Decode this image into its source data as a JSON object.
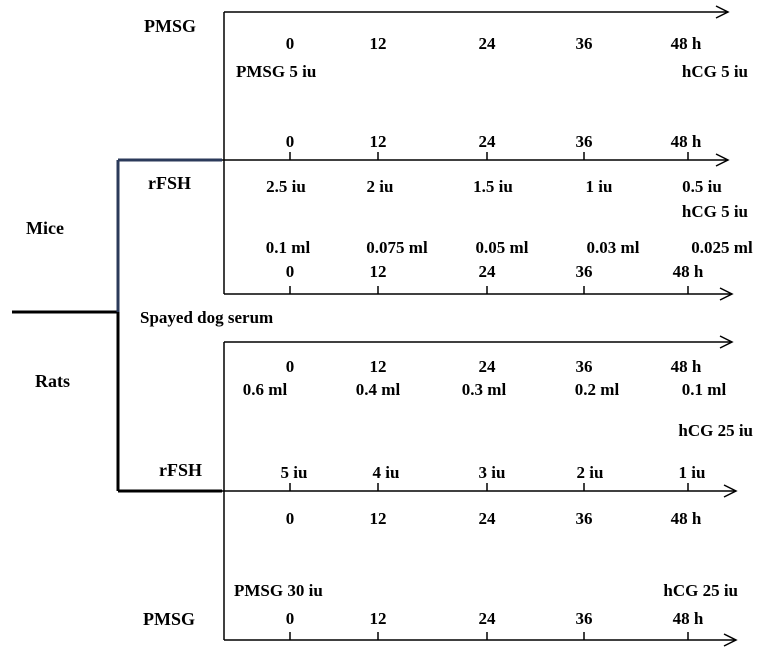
{
  "species": {
    "mice": "Mice",
    "rats": "Rats"
  },
  "protocols": {
    "mice_pmsg": {
      "label": "PMSG",
      "hours": [
        "0",
        "12",
        "24",
        "36",
        "48 h"
      ],
      "start_dose": "PMSG 5 iu",
      "end_dose": "hCG 5 iu"
    },
    "mice_rfsh": {
      "label": "rFSH",
      "hours": [
        "0",
        "12",
        "24",
        "36",
        "48 h"
      ],
      "doses": [
        "2.5 iu",
        "2 iu",
        "1.5 iu",
        "1 iu",
        "0.5 iu"
      ],
      "end_dose": "hCG 5 iu"
    },
    "mice_serum": {
      "label": "Spayed dog serum",
      "volumes": [
        "0.1 ml",
        "0.075 ml",
        "0.05 ml",
        "0.03 ml",
        "0.025 ml"
      ],
      "hours": [
        "0",
        "12",
        "24",
        "36",
        "48 h"
      ]
    },
    "rats_serum": {
      "hours": [
        "0",
        "12",
        "24",
        "36",
        "48 h"
      ],
      "volumes": [
        "0.6 ml",
        "0.4 ml",
        "0.3 ml",
        "0.2 ml",
        "0.1 ml"
      ],
      "end_dose": "hCG 25 iu"
    },
    "rats_rfsh": {
      "label": "rFSH",
      "doses": [
        "5 iu",
        "4 iu",
        "3 iu",
        "2 iu",
        "1 iu"
      ],
      "hours": [
        "0",
        "12",
        "24",
        "36",
        "48 h"
      ]
    },
    "rats_pmsg": {
      "label": "PMSG",
      "start_dose": "PMSG 30 iu",
      "end_dose": "hCG 25 iu",
      "hours": [
        "0",
        "12",
        "24",
        "36",
        "48 h"
      ]
    }
  }
}
